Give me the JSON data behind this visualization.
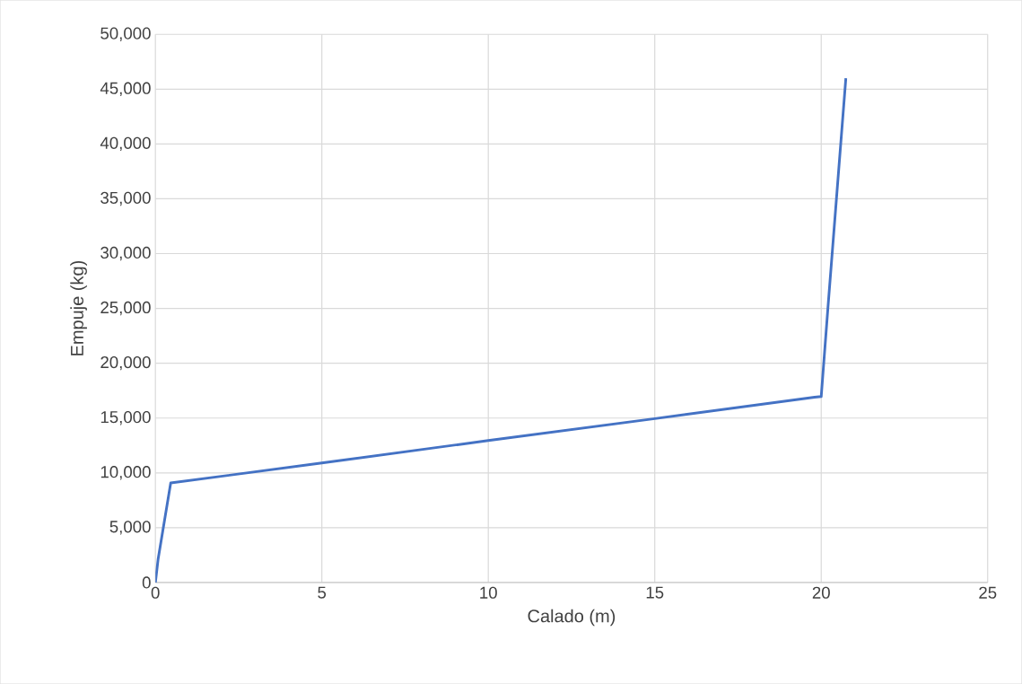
{
  "chart_data": {
    "type": "line",
    "xlabel": "Calado (m)",
    "ylabel": "Empuje (kg)",
    "series": [
      {
        "color": "#4472c4",
        "x": [
          0,
          0.08,
          0.46,
          5,
          10,
          15,
          19.8,
          20,
          20.2,
          20.74
        ],
        "values": [
          0,
          2100,
          9080,
          10900,
          12950,
          14950,
          16900,
          16960,
          25000,
          46000
        ]
      }
    ],
    "xlim": [
      0,
      25
    ],
    "ylim": [
      0,
      50000
    ],
    "xticks": [
      0,
      5,
      10,
      15,
      20,
      25
    ],
    "yticks": [
      0,
      {
        "value": 5000,
        "label": "5,000"
      },
      {
        "value": 10000,
        "label": "10,000"
      },
      {
        "value": 15000,
        "label": "15,000"
      },
      {
        "value": 20000,
        "label": "20,000"
      },
      {
        "value": 25000,
        "label": "25,000"
      },
      {
        "value": 30000,
        "label": "30,000"
      },
      {
        "value": 35000,
        "label": "35,000"
      },
      {
        "value": 40000,
        "label": "40,000"
      },
      {
        "value": 45000,
        "label": "45,000"
      },
      {
        "value": 50000,
        "label": "50,000"
      }
    ],
    "grid": true,
    "marker": "none",
    "line_style": "solid"
  }
}
